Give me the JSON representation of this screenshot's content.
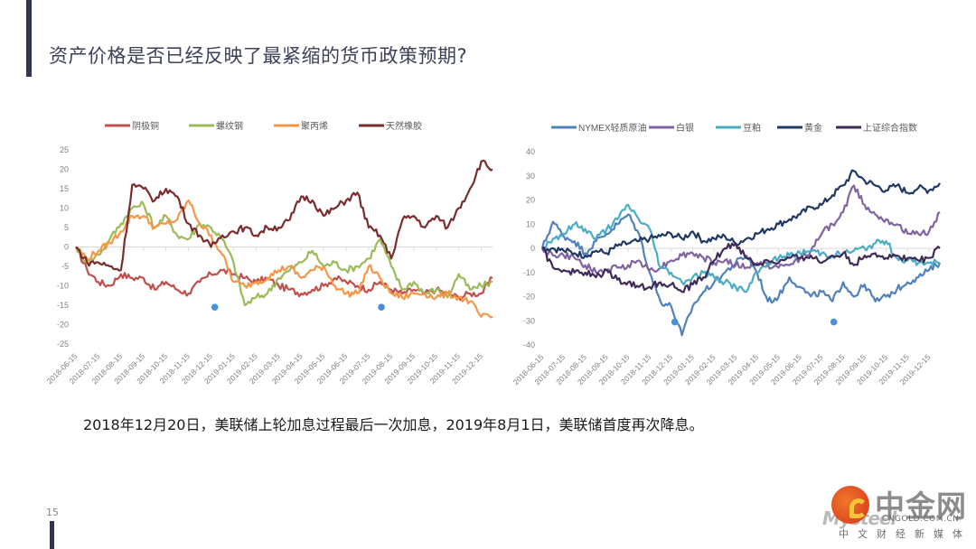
{
  "page": {
    "title": "资产价格是否已经反映了最紧缩的货币政策预期?",
    "caption": "2018年12月20日，美联储上轮加息过程最后一次加息，2019年8月1日，美联储首度再次降息。",
    "page_number": "15",
    "logo": {
      "name": "中金网",
      "url": "CNGOLD.COM.CN",
      "tagline": "中文财经新媒体",
      "watermark": "Mysteel"
    }
  },
  "chart_data": [
    {
      "type": "line",
      "title": "",
      "xlabel": "",
      "ylabel": "",
      "ylim": [
        -25,
        25
      ],
      "yticks": [
        25,
        20,
        15,
        10,
        5,
        0,
        -5,
        -10,
        -15,
        -20,
        -25
      ],
      "x_tick_labels": [
        "2018-06-15",
        "2018-07-15",
        "2018-08-15",
        "2018-09-15",
        "2018-10-15",
        "2018-11-15",
        "2018-12-15",
        "2019-01-15",
        "2019-02-15",
        "2019-03-15",
        "2019-04-15",
        "2019-05-15",
        "2019-06-15",
        "2019-07-15",
        "2019-08-15",
        "2019-09-15",
        "2019-10-15",
        "2019-11-15",
        "2019-12-15"
      ],
      "legend_position": "top",
      "grid": false,
      "x_months": [
        0,
        0.5,
        1,
        1.5,
        2,
        2.5,
        3,
        3.5,
        4,
        4.5,
        5,
        5.5,
        6,
        6.5,
        7,
        7.5,
        8,
        8.5,
        9,
        9.5,
        10,
        10.5,
        11,
        11.5,
        12,
        12.5,
        13,
        13.5,
        14,
        14.5,
        15,
        15.5,
        16,
        16.5,
        17,
        17.5,
        18,
        18.5
      ],
      "series": [
        {
          "name": "阴极铜",
          "color": "#c0504d",
          "values": [
            0,
            -6,
            -9,
            -10,
            -7,
            -8,
            -8,
            -11,
            -9,
            -11,
            -12,
            -9,
            -7,
            -6,
            -7,
            -8,
            -9,
            -8,
            -10,
            -11,
            -12,
            -11,
            -10,
            -8,
            -9,
            -10,
            -11,
            -9,
            -11,
            -12,
            -11,
            -12,
            -11,
            -12,
            -13,
            -12,
            -12,
            -8
          ]
        },
        {
          "name": "螺纹钢",
          "color": "#9bbb59",
          "values": [
            0,
            -4,
            -2,
            2,
            6,
            10,
            11,
            5,
            8,
            3,
            2,
            6,
            5,
            2,
            -4,
            -15,
            -13,
            -12,
            -8,
            -6,
            -4,
            -1,
            -5,
            -4,
            -6,
            -5,
            -3,
            2,
            -5,
            -11,
            -9,
            -12,
            -11,
            -13,
            -7,
            -11,
            -10,
            -9
          ]
        },
        {
          "name": "聚丙烯",
          "color": "#f79646",
          "values": [
            0,
            -3,
            -1,
            1,
            4,
            8,
            8,
            5,
            6,
            7,
            12,
            6,
            3,
            -2,
            -9,
            -10,
            -9,
            -8,
            -6,
            -5,
            -8,
            -6,
            -5,
            -10,
            -12,
            -12,
            -5,
            -8,
            -12,
            -13,
            -12,
            -12,
            -13,
            -12,
            -13,
            -14,
            -18,
            -18
          ]
        },
        {
          "name": "天然橡胶",
          "color": "#7b2c2c",
          "values": [
            0,
            -4,
            -4,
            -5,
            -6,
            16,
            15,
            12,
            15,
            13,
            6,
            3,
            0,
            3,
            4,
            5,
            3,
            5,
            5,
            7,
            13,
            12,
            8,
            10,
            12,
            14,
            5,
            3,
            -3,
            7,
            8,
            5,
            8,
            5,
            10,
            15,
            22,
            20
          ]
        }
      ],
      "markers": [
        {
          "x_tick": "2018-12-15",
          "offset_days": 5,
          "value": -15.5,
          "color": "#4a90d9"
        },
        {
          "x_tick": "2019-07-15",
          "offset_days": 17,
          "value": -15.5,
          "color": "#4a90d9"
        }
      ]
    },
    {
      "type": "line",
      "title": "",
      "xlabel": "",
      "ylabel": "",
      "ylim": [
        -40,
        40
      ],
      "yticks": [
        40,
        30,
        20,
        10,
        0,
        -10,
        -20,
        -30,
        -40
      ],
      "x_tick_labels": [
        "2018-06-15",
        "2018-07-15",
        "2018-08-15",
        "2018-09-15",
        "2018-10-15",
        "2018-11-15",
        "2018-12-15",
        "2019-01-15",
        "2019-02-15",
        "2019-03-15",
        "2019-04-15",
        "2019-05-15",
        "2019-06-15",
        "2019-07-15",
        "2019-08-15",
        "2019-09-15",
        "2019-10-15",
        "2019-11-15",
        "2019-12-15"
      ],
      "legend_position": "top",
      "grid": false,
      "x_months": [
        0,
        0.5,
        1,
        1.5,
        2,
        2.5,
        3,
        3.5,
        4,
        4.5,
        5,
        5.5,
        6,
        6.5,
        7,
        7.5,
        8,
        8.5,
        9,
        9.5,
        10,
        10.5,
        11,
        11.5,
        12,
        12.5,
        13,
        13.5,
        14,
        14.5,
        15,
        15.5,
        16,
        16.5,
        17,
        17.5,
        18,
        18.5
      ],
      "series": [
        {
          "name": "NYMEX轻质原油",
          "color": "#4f81bd",
          "values": [
            0,
            11,
            5,
            3,
            -2,
            3,
            6,
            10,
            14,
            6,
            -10,
            -22,
            -24,
            -36,
            -24,
            -18,
            -14,
            -10,
            -6,
            -3,
            -10,
            -22,
            -20,
            -12,
            -16,
            -20,
            -18,
            -22,
            -14,
            -20,
            -15,
            -22,
            -20,
            -17,
            -14,
            -12,
            -9,
            -6
          ]
        },
        {
          "name": "白银",
          "color": "#8064a2",
          "values": [
            0,
            -3,
            -3,
            -4,
            -7,
            -10,
            -9,
            -8,
            -7,
            -5,
            -9,
            -8,
            -5,
            -3,
            -2,
            -4,
            -6,
            -5,
            -7,
            -8,
            -6,
            -7,
            -8,
            -7,
            -4,
            -1,
            6,
            10,
            15,
            26,
            18,
            14,
            12,
            10,
            6,
            6,
            7,
            15
          ]
        },
        {
          "name": "豆粕",
          "color": "#4bacc6",
          "values": [
            0,
            4,
            6,
            10,
            8,
            4,
            8,
            12,
            18,
            12,
            8,
            -8,
            -10,
            -14,
            -12,
            -10,
            -12,
            -14,
            -16,
            -18,
            -10,
            -6,
            -4,
            -3,
            -2,
            -1,
            -2,
            -3,
            -2,
            -1,
            0,
            2,
            3,
            -4,
            -5,
            -6,
            -6,
            -6
          ]
        },
        {
          "name": "黄金",
          "color": "#1f3864",
          "values": [
            0,
            0,
            -1,
            -2,
            -3,
            -1,
            -2,
            1,
            2,
            3,
            4,
            5,
            6,
            4,
            7,
            3,
            4,
            5,
            2,
            4,
            6,
            8,
            10,
            12,
            14,
            17,
            18,
            22,
            26,
            32,
            28,
            26,
            24,
            26,
            23,
            25,
            24,
            27
          ]
        },
        {
          "name": "上证综合指数",
          "color": "#3f2b56",
          "values": [
            0,
            -8,
            -9,
            -10,
            -10,
            -12,
            -9,
            -13,
            -14,
            -16,
            -16,
            -14,
            -15,
            -18,
            -15,
            -12,
            -5,
            0,
            2,
            -4,
            -7,
            -5,
            -6,
            -4,
            -4,
            -3,
            -6,
            -3,
            -2,
            -7,
            -3,
            -2,
            -4,
            -3,
            -4,
            -5,
            -4,
            0
          ]
        }
      ],
      "markers": [
        {
          "x_tick": "2018-12-15",
          "offset_days": 5,
          "value": -30.5,
          "color": "#4a90d9"
        },
        {
          "x_tick": "2019-07-15",
          "offset_days": 17,
          "value": -30.5,
          "color": "#4a90d9"
        }
      ]
    }
  ]
}
